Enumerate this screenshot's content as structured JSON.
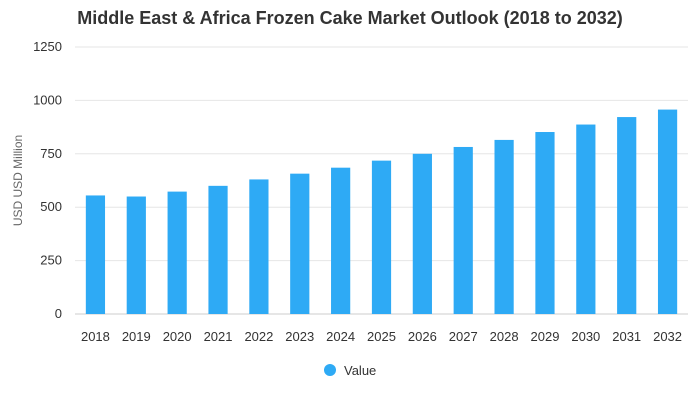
{
  "chart_data": {
    "type": "bar",
    "title": "Middle East & Africa Frozen Cake Market Outlook (2018 to 2032)",
    "xlabel": "",
    "ylabel": "USD USD Million",
    "categories": [
      "2018",
      "2019",
      "2020",
      "2021",
      "2022",
      "2023",
      "2024",
      "2025",
      "2026",
      "2027",
      "2028",
      "2029",
      "2030",
      "2031",
      "2032"
    ],
    "series": [
      {
        "name": "Value",
        "color": "#2eaaf5",
        "values": [
          555,
          550,
          573,
          600,
          630,
          657,
          685,
          718,
          750,
          782,
          815,
          852,
          887,
          922,
          957
        ]
      }
    ],
    "ylim": [
      0,
      1250
    ],
    "yticks": [
      0,
      250,
      500,
      750,
      1000,
      1250
    ],
    "grid": true,
    "legend": "bottom-center"
  }
}
